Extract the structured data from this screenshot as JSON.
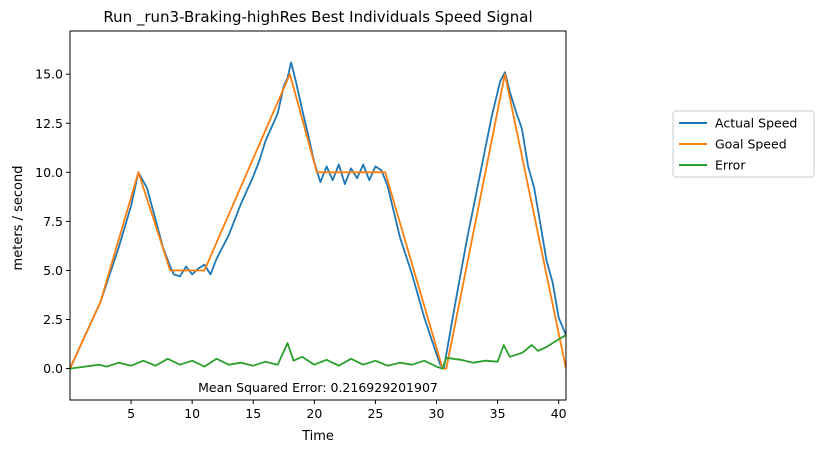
{
  "chart_data": {
    "type": "line",
    "title": "Run _run3-Braking-highRes Best Individuals Speed Signal",
    "xlabel": "Time",
    "ylabel": "meters / second",
    "xlim": [
      0,
      40.6
    ],
    "ylim": [
      -1.6,
      17.2
    ],
    "x_ticks": [
      5,
      10,
      15,
      20,
      25,
      30,
      35,
      40
    ],
    "x_tick_labels": [
      "5",
      "10",
      "15",
      "20",
      "25",
      "30",
      "35",
      "40"
    ],
    "y_ticks": [
      0,
      2.5,
      5,
      7.5,
      10,
      12.5,
      15
    ],
    "y_tick_labels": [
      "0.0",
      "2.5",
      "5.0",
      "7.5",
      "10.0",
      "12.5",
      "15.0"
    ],
    "grid": false,
    "legend_position": "outside-right",
    "annotation": "Mean Squared Error: 0.216929201907",
    "series": [
      {
        "name": "Actual Speed",
        "color": "#1f77b4",
        "points": [
          [
            0,
            0
          ],
          [
            2.5,
            3.4
          ],
          [
            4,
            6.2
          ],
          [
            5,
            8.3
          ],
          [
            5.6,
            10
          ],
          [
            6.3,
            9.2
          ],
          [
            7,
            7.6
          ],
          [
            7.6,
            6.2
          ],
          [
            8.2,
            5.2
          ],
          [
            8.5,
            4.8
          ],
          [
            9,
            4.7
          ],
          [
            9.5,
            5.2
          ],
          [
            10,
            4.8
          ],
          [
            10.5,
            5.1
          ],
          [
            11,
            5.3
          ],
          [
            11.5,
            4.8
          ],
          [
            12,
            5.6
          ],
          [
            13,
            6.8
          ],
          [
            14,
            8.4
          ],
          [
            15,
            9.8
          ],
          [
            15.5,
            10.6
          ],
          [
            16,
            11.6
          ],
          [
            16.5,
            12.3
          ],
          [
            17,
            13
          ],
          [
            17.5,
            14.4
          ],
          [
            17.8,
            14.8
          ],
          [
            18.1,
            15.6
          ],
          [
            18.5,
            14.6
          ],
          [
            19,
            13.2
          ],
          [
            19.5,
            11.9
          ],
          [
            20,
            10.5
          ],
          [
            20.5,
            9.5
          ],
          [
            21,
            10.3
          ],
          [
            21.5,
            9.6
          ],
          [
            22,
            10.4
          ],
          [
            22.5,
            9.4
          ],
          [
            23,
            10.2
          ],
          [
            23.5,
            9.7
          ],
          [
            24,
            10.4
          ],
          [
            24.5,
            9.6
          ],
          [
            25,
            10.3
          ],
          [
            25.5,
            10.1
          ],
          [
            26,
            9.3
          ],
          [
            27,
            6.7
          ],
          [
            28,
            4.8
          ],
          [
            29,
            2.6
          ],
          [
            29.7,
            1.3
          ],
          [
            30.3,
            0.2
          ],
          [
            30.6,
            0
          ],
          [
            31.5,
            3.2
          ],
          [
            32.5,
            6.6
          ],
          [
            33.5,
            9.7
          ],
          [
            34.5,
            12.8
          ],
          [
            35.2,
            14.6
          ],
          [
            35.6,
            15.1
          ],
          [
            36,
            14.1
          ],
          [
            36.5,
            13.1
          ],
          [
            37,
            12.2
          ],
          [
            37.5,
            10.3
          ],
          [
            38,
            9.2
          ],
          [
            38.5,
            7.4
          ],
          [
            39,
            5.5
          ],
          [
            39.5,
            4.4
          ],
          [
            40,
            2.6
          ],
          [
            40.6,
            1.7
          ]
        ]
      },
      {
        "name": "Goal Speed",
        "color": "#ff7f0e",
        "points": [
          [
            0,
            0
          ],
          [
            2.5,
            3.4
          ],
          [
            5.6,
            10
          ],
          [
            8.2,
            5
          ],
          [
            11,
            5
          ],
          [
            18,
            15
          ],
          [
            20.2,
            10
          ],
          [
            25.8,
            10
          ],
          [
            30.5,
            0
          ],
          [
            30.8,
            0
          ],
          [
            35.6,
            15
          ],
          [
            40.6,
            0
          ]
        ]
      },
      {
        "name": "Error",
        "color": "#2ca02c",
        "points": [
          [
            0,
            0
          ],
          [
            2.4,
            0.2
          ],
          [
            3,
            0.1
          ],
          [
            4,
            0.3
          ],
          [
            5,
            0.15
          ],
          [
            6,
            0.4
          ],
          [
            7,
            0.15
          ],
          [
            8,
            0.5
          ],
          [
            9,
            0.2
          ],
          [
            10,
            0.4
          ],
          [
            11,
            0.1
          ],
          [
            12,
            0.5
          ],
          [
            13,
            0.2
          ],
          [
            14,
            0.3
          ],
          [
            15,
            0.15
          ],
          [
            16,
            0.35
          ],
          [
            17,
            0.2
          ],
          [
            17.8,
            1.3
          ],
          [
            18.3,
            0.4
          ],
          [
            19,
            0.6
          ],
          [
            20,
            0.2
          ],
          [
            21,
            0.45
          ],
          [
            22,
            0.15
          ],
          [
            23,
            0.5
          ],
          [
            24,
            0.2
          ],
          [
            25,
            0.4
          ],
          [
            26,
            0.15
          ],
          [
            27,
            0.3
          ],
          [
            28,
            0.2
          ],
          [
            29,
            0.4
          ],
          [
            30,
            0.1
          ],
          [
            30.5,
            0
          ],
          [
            30.8,
            0.55
          ],
          [
            32,
            0.45
          ],
          [
            33,
            0.3
          ],
          [
            34,
            0.4
          ],
          [
            35,
            0.35
          ],
          [
            35.5,
            1.2
          ],
          [
            36,
            0.6
          ],
          [
            37,
            0.8
          ],
          [
            37.8,
            1.2
          ],
          [
            38.3,
            0.9
          ],
          [
            39,
            1.1
          ],
          [
            39.5,
            1.3
          ],
          [
            40,
            1.5
          ],
          [
            40.6,
            1.7
          ]
        ]
      }
    ]
  }
}
